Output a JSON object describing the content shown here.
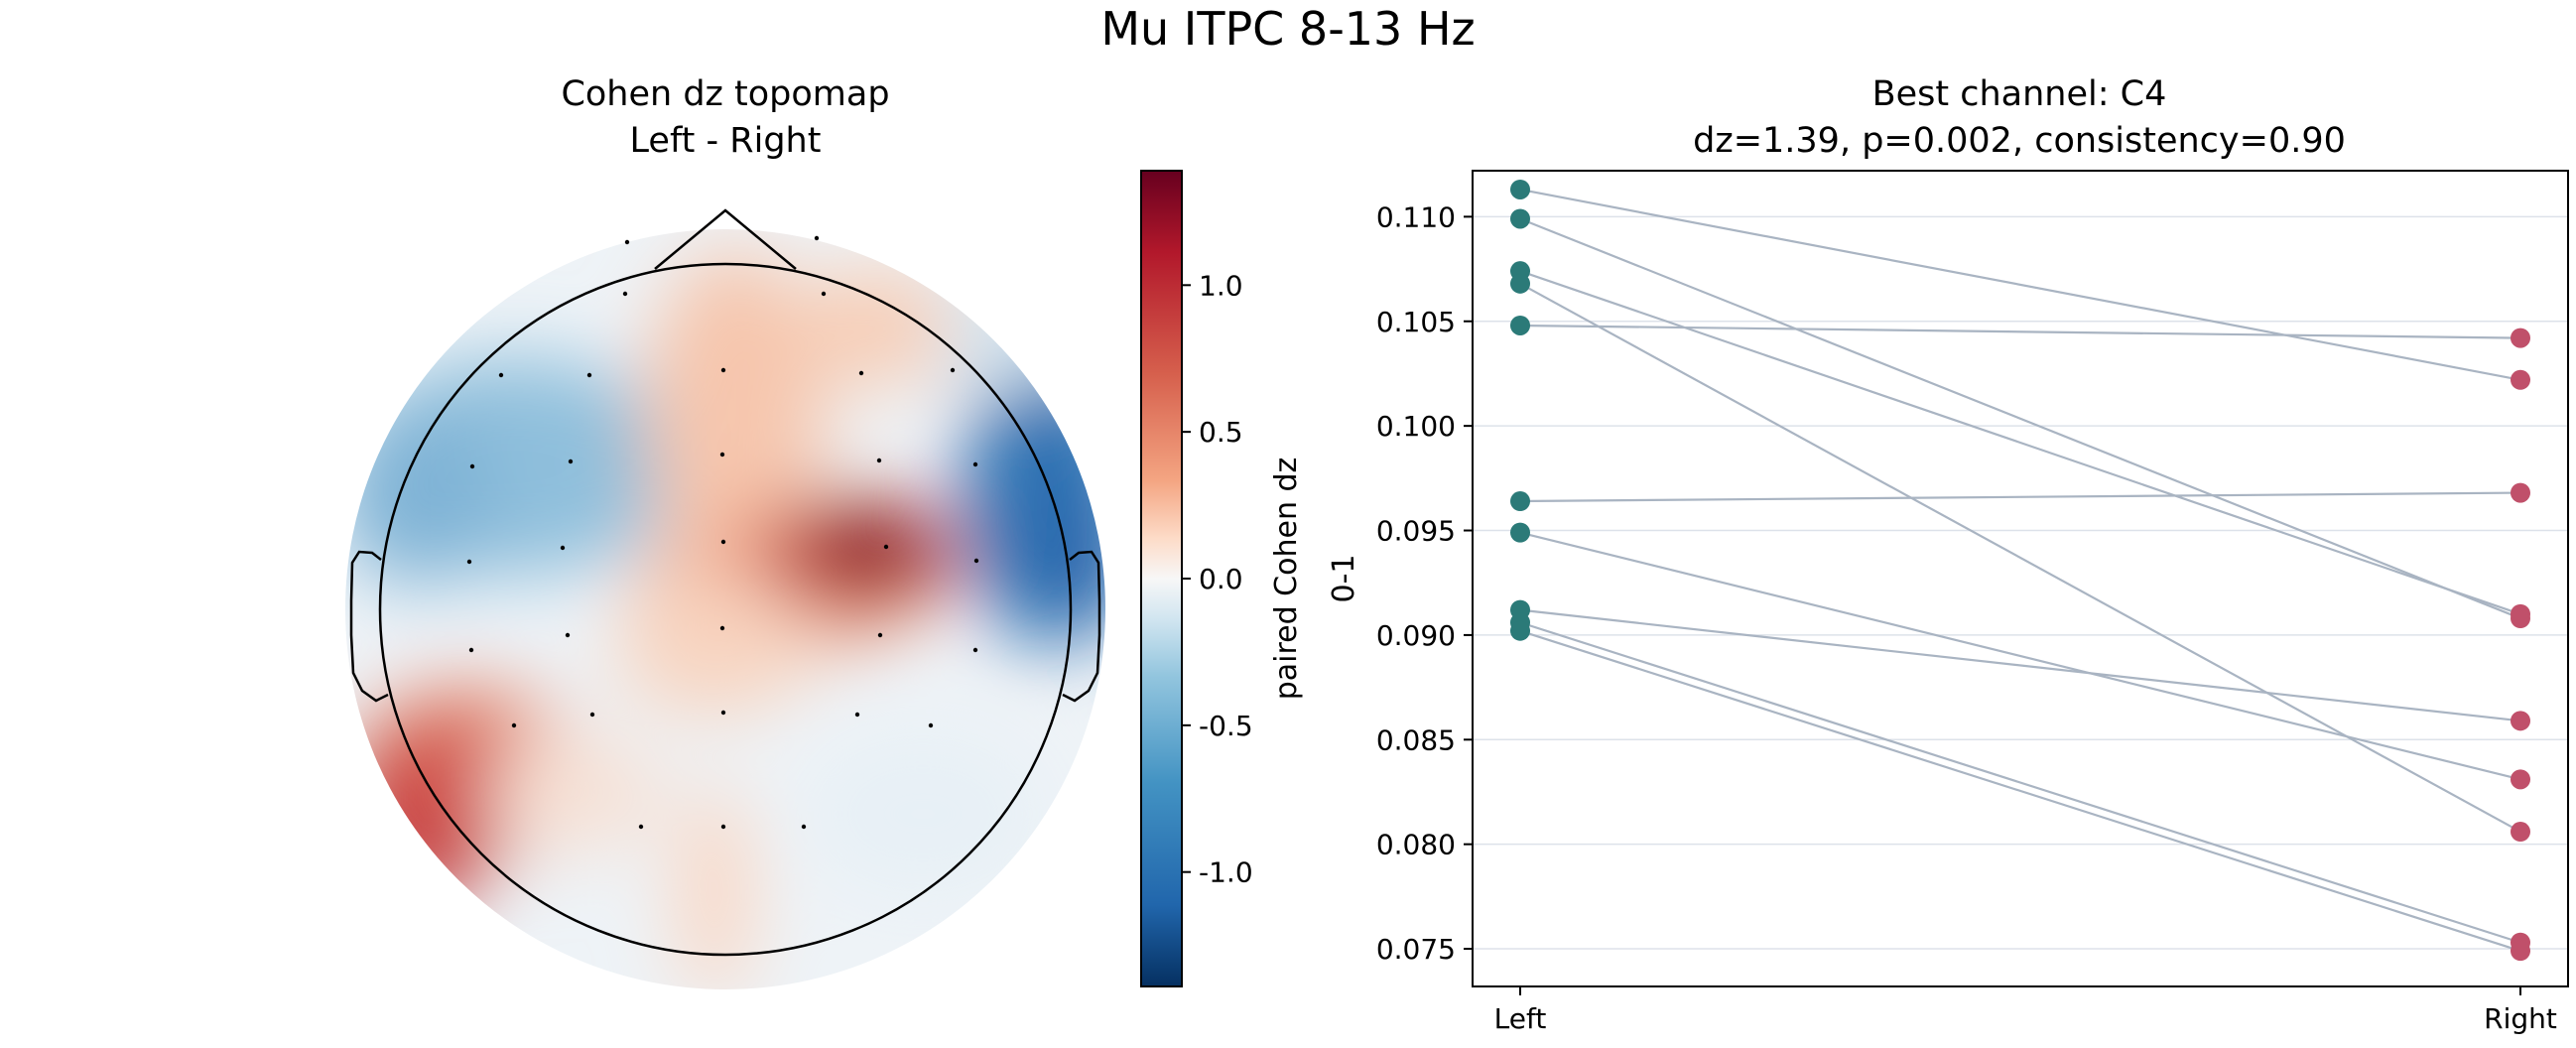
{
  "figure": {
    "suptitle": "Mu ITPC 8-13 Hz"
  },
  "topomap": {
    "title_line1": "Cohen dz topomap",
    "title_line2": "Left - Right",
    "colorbar": {
      "label": "paired Cohen dz",
      "ticks": [
        "1.0",
        "0.5",
        "0.0",
        "-0.5",
        "-1.0"
      ],
      "tick_values": [
        1.0,
        0.5,
        0.0,
        -0.5,
        -1.0
      ],
      "range": [
        -1.39,
        1.39
      ],
      "colormap": "RdBu_r",
      "colors": {
        "max": "#67001f",
        "mid": "#f7f7f7",
        "min": "#053061"
      }
    }
  },
  "chart_data": {
    "type": "scatter",
    "title_line1": "Best channel: C4",
    "title_line2": "dz=1.39, p=0.002, consistency=0.90",
    "ylabel": "0-1",
    "categories": [
      "Left",
      "Right"
    ],
    "ylim": [
      0.0732,
      0.1122
    ],
    "yticks": [
      "0.075",
      "0.080",
      "0.085",
      "0.090",
      "0.095",
      "0.100",
      "0.105",
      "0.110"
    ],
    "ytick_values": [
      0.075,
      0.08,
      0.085,
      0.09,
      0.095,
      0.1,
      0.105,
      0.11
    ],
    "grid": true,
    "colors": {
      "left": "#2b7a78",
      "right": "#c0506a",
      "line": "#a9b4c2",
      "grid": "#dde2ea"
    },
    "pairs": [
      [
        0.1113,
        0.1022
      ],
      [
        0.1099,
        0.0908
      ],
      [
        0.1074,
        0.091
      ],
      [
        0.1068,
        0.0806
      ],
      [
        0.1048,
        0.1042
      ],
      [
        0.0964,
        0.0968
      ],
      [
        0.0949,
        0.0831
      ],
      [
        0.0912,
        0.0859
      ],
      [
        0.0906,
        0.0753
      ],
      [
        0.0902,
        0.0749
      ]
    ]
  }
}
